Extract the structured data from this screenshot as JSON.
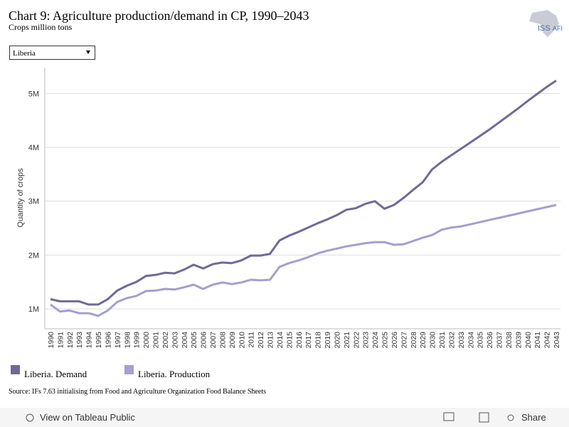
{
  "chart_data": {
    "type": "line",
    "title": "Chart 9: Agriculture production/demand in CP, 1990–2043",
    "subtitle": "Crops million tons",
    "y_label": "Quantity of crops",
    "x": [
      1990,
      1991,
      1992,
      1993,
      1994,
      1995,
      1996,
      1997,
      1998,
      1999,
      2000,
      2001,
      2002,
      2003,
      2004,
      2005,
      2006,
      2007,
      2008,
      2009,
      2010,
      2011,
      2012,
      2013,
      2014,
      2015,
      2016,
      2017,
      2018,
      2019,
      2020,
      2021,
      2022,
      2023,
      2024,
      2025,
      2026,
      2027,
      2028,
      2029,
      2030,
      2031,
      2032,
      2033,
      2034,
      2035,
      2036,
      2037,
      2038,
      2039,
      2040,
      2041,
      2042,
      2043
    ],
    "series": [
      {
        "name": "Liberia. Demand",
        "color": "#6e6a98",
        "values": [
          1180000,
          1140000,
          1140000,
          1140000,
          1080000,
          1080000,
          1180000,
          1340000,
          1430000,
          1500000,
          1610000,
          1630000,
          1670000,
          1660000,
          1730000,
          1820000,
          1750000,
          1830000,
          1860000,
          1850000,
          1900000,
          1990000,
          1990000,
          2020000,
          2270000,
          2360000,
          2430000,
          2510000,
          2590000,
          2660000,
          2740000,
          2840000,
          2870000,
          2950000,
          3000000,
          2860000,
          2930000,
          3060000,
          3210000,
          3350000,
          3590000,
          3730000,
          3850000,
          3970000,
          4090000,
          4210000,
          4330000,
          4460000,
          4590000,
          4720000,
          4860000,
          4990000,
          5120000,
          5240000
        ]
      },
      {
        "name": "Liberia. Production",
        "color": "#a39fcf",
        "values": [
          1080000,
          950000,
          970000,
          920000,
          920000,
          870000,
          970000,
          1130000,
          1200000,
          1240000,
          1330000,
          1340000,
          1370000,
          1360000,
          1400000,
          1450000,
          1370000,
          1450000,
          1490000,
          1460000,
          1490000,
          1540000,
          1530000,
          1540000,
          1780000,
          1850000,
          1900000,
          1960000,
          2030000,
          2080000,
          2120000,
          2160000,
          2190000,
          2220000,
          2240000,
          2240000,
          2190000,
          2200000,
          2260000,
          2320000,
          2370000,
          2470000,
          2510000,
          2530000,
          2570000,
          2610000,
          2650000,
          2690000,
          2730000,
          2770000,
          2810000,
          2850000,
          2890000,
          2930000
        ]
      }
    ],
    "ylim": [
      630000,
      5480000
    ],
    "yticks": [
      {
        "value": 1000000,
        "label": "1M"
      },
      {
        "value": 2000000,
        "label": "2M"
      },
      {
        "value": 3000000,
        "label": "3M"
      },
      {
        "value": 4000000,
        "label": "4M"
      },
      {
        "value": 5000000,
        "label": "5M"
      }
    ],
    "grid": true,
    "legend": "bottom",
    "source": "Source: IFs 7.63 initialising from Food and Agriculture Organization Food Balance Sheets"
  },
  "filter": "Liberia",
  "logo": {
    "left": "ISS",
    "right": "AFI"
  },
  "toolbar": {
    "view": "View on Tableau Public",
    "share": "Share"
  }
}
